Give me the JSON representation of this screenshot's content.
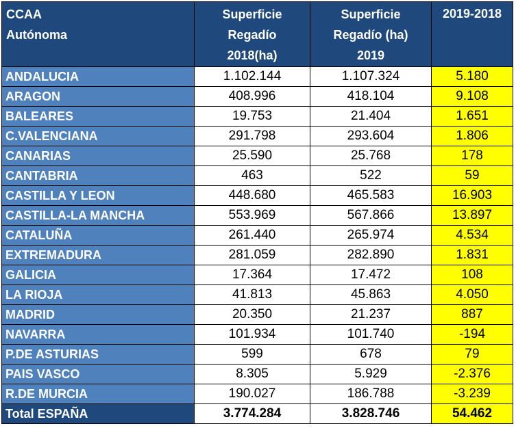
{
  "chart_data": {
    "type": "table",
    "headers": {
      "region": [
        "CCAA",
        "Autónoma"
      ],
      "y2018": [
        "Superficie",
        "Regadío",
        "2018(ha)"
      ],
      "y2019": [
        "Superficie",
        "Regadío (ha)",
        "2019"
      ],
      "diff": [
        "2019-2018"
      ]
    },
    "rows": [
      {
        "region": "ANDALUCIA",
        "y2018": "1.102.144",
        "y2019": "1.107.324",
        "diff": "5.180"
      },
      {
        "region": "ARAGON",
        "y2018": "408.996",
        "y2019": "418.104",
        "diff": "9.108"
      },
      {
        "region": "BALEARES",
        "y2018": "19.753",
        "y2019": "21.404",
        "diff": "1.651"
      },
      {
        "region": "C.VALENCIANA",
        "y2018": "291.798",
        "y2019": "293.604",
        "diff": "1.806"
      },
      {
        "region": "CANARIAS",
        "y2018": "25.590",
        "y2019": "25.768",
        "diff": "178"
      },
      {
        "region": "CANTABRIA",
        "y2018": "463",
        "y2019": "522",
        "diff": "59"
      },
      {
        "region": "CASTILLA Y LEON",
        "y2018": "448.680",
        "y2019": "465.583",
        "diff": "16.903"
      },
      {
        "region": "CASTILLA-LA MANCHA",
        "y2018": "553.969",
        "y2019": "567.866",
        "diff": "13.897"
      },
      {
        "region": "CATALUÑA",
        "y2018": "261.440",
        "y2019": "265.974",
        "diff": "4.534"
      },
      {
        "region": "EXTREMADURA",
        "y2018": "281.059",
        "y2019": "282.890",
        "diff": "1.831"
      },
      {
        "region": "GALICIA",
        "y2018": "17.364",
        "y2019": "17.472",
        "diff": "108"
      },
      {
        "region": "LA RIOJA",
        "y2018": "41.813",
        "y2019": "45.863",
        "diff": "4.050"
      },
      {
        "region": "MADRID",
        "y2018": "20.350",
        "y2019": "21.237",
        "diff": "887"
      },
      {
        "region": "NAVARRA",
        "y2018": "101.934",
        "y2019": "101.740",
        "diff": "-194"
      },
      {
        "region": "P.DE ASTURIAS",
        "y2018": "599",
        "y2019": "678",
        "diff": "79"
      },
      {
        "region": "PAIS VASCO",
        "y2018": "8.305",
        "y2019": "5.929",
        "diff": "-2.376"
      },
      {
        "region": "R.DE MURCIA",
        "y2018": "190.027",
        "y2019": "186.788",
        "diff": "-3.239"
      }
    ],
    "total": {
      "region": "Total ESPAÑA",
      "y2018": "3.774.284",
      "y2019": "3.828.746",
      "diff": "54.462"
    },
    "colors": {
      "header_bg": "#1f497d",
      "region_bg": "#4f81bd",
      "diff_bg": "#ffff00",
      "value_bg": "#ffffff"
    }
  }
}
